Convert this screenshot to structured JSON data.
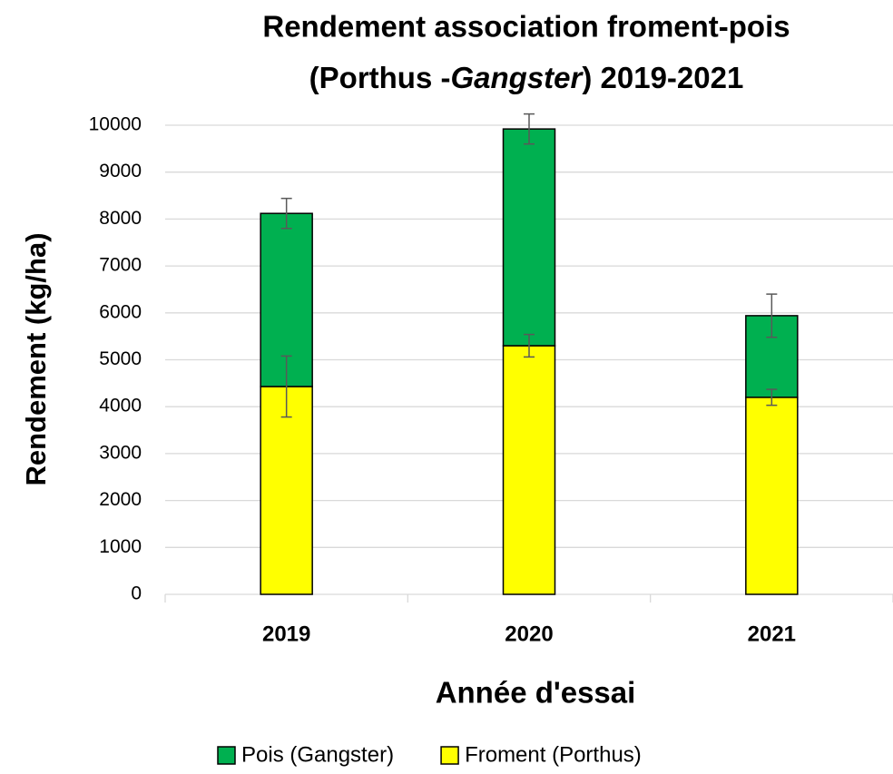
{
  "chart_data": {
    "type": "stacked_bar",
    "title": [
      "Rendement association froment-pois",
      "(Porthus -",
      "Gangster",
      ") 2019-2021"
    ],
    "x_label": "Année d'essai",
    "y_label": "Rendement (kg/ha)",
    "categories": [
      "2019",
      "2020",
      "2021"
    ],
    "series": [
      {
        "name": "Froment (Porthus)",
        "color": "#ffff00",
        "values": [
          4430,
          5300,
          4200
        ],
        "errors": [
          650,
          240,
          170
        ]
      },
      {
        "name": "Pois (Gangster)",
        "color": "#00b050",
        "values": [
          3690,
          4620,
          1740
        ],
        "errors": [
          320,
          320,
          460
        ]
      }
    ],
    "ylim": [
      0,
      10000
    ],
    "yticks": [
      0,
      1000,
      2000,
      3000,
      4000,
      5000,
      6000,
      7000,
      8000,
      9000,
      10000
    ],
    "grid": true,
    "legend": "bottom"
  }
}
